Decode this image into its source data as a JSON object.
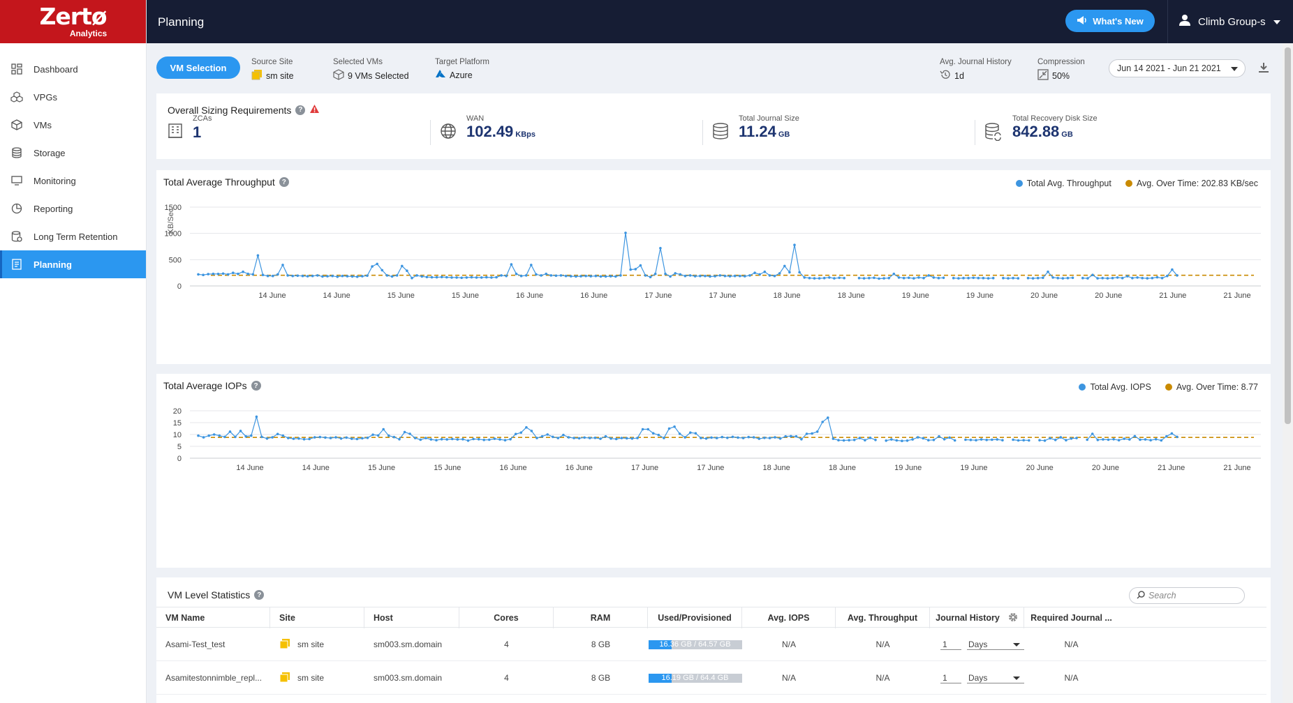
{
  "brand": {
    "name": "Zertø",
    "sub": "Analytics"
  },
  "sidebar": {
    "items": [
      {
        "label": "Dashboard",
        "icon": "dashboard-icon"
      },
      {
        "label": "VPGs",
        "icon": "vpgs-icon"
      },
      {
        "label": "VMs",
        "icon": "vms-icon"
      },
      {
        "label": "Storage",
        "icon": "storage-icon"
      },
      {
        "label": "Monitoring",
        "icon": "monitor-icon"
      },
      {
        "label": "Reporting",
        "icon": "pie-chart-icon"
      },
      {
        "label": "Long Term Retention",
        "icon": "ltr-icon"
      },
      {
        "label": "Planning",
        "icon": "planning-icon",
        "active": true
      }
    ]
  },
  "header": {
    "title": "Planning",
    "whats_new": "What's New",
    "user": "Climb Group-s"
  },
  "toolbar": {
    "vm_selection": "VM Selection",
    "source_site_label": "Source Site",
    "source_site_value": "sm site",
    "selected_vms_label": "Selected VMs",
    "selected_vms_value": "9 VMs Selected",
    "target_platform_label": "Target Platform",
    "target_platform_value": "Azure",
    "journal_history_label": "Avg. Journal History",
    "journal_history_value": "1d",
    "compression_label": "Compression",
    "compression_value": "50%",
    "date_range": "Jun 14 2021 - Jun 21 2021"
  },
  "sizing": {
    "title": "Overall Sizing Requirements",
    "zcas_label": "ZCAs",
    "zcas_value": "1",
    "wan_label": "WAN",
    "wan_value": "102.49",
    "wan_unit": "KBps",
    "journal_label": "Total Journal Size",
    "journal_value": "11.24",
    "journal_unit": "GB",
    "recovery_label": "Total Recovery Disk Size",
    "recovery_value": "842.88",
    "recovery_unit": "GB"
  },
  "colors": {
    "accent": "#2b97f0",
    "series": "#3d95e0",
    "average": "#c98a00",
    "header": "#161d34",
    "brand": "#c4161c"
  },
  "chart_data": [
    {
      "type": "line",
      "title": "Total Average Throughput",
      "ylabel": "KB/Sec",
      "ylim": [
        0,
        1500
      ],
      "yticks": [
        0,
        500,
        1000,
        1500
      ],
      "xticks": [
        "14 June",
        "14 June",
        "15 June",
        "15 June",
        "16 June",
        "16 June",
        "17 June",
        "17 June",
        "18 June",
        "18 June",
        "19 June",
        "19 June",
        "20 June",
        "20 June",
        "21 June",
        "21 June"
      ],
      "legend": [
        "Total Avg. Throughput",
        "Avg. Over Time: 202.83 KB/sec"
      ],
      "average": 202.83,
      "series": [
        {
          "name": "Total Avg. Throughput",
          "values": [
            220,
            210,
            225,
            230,
            228,
            235,
            220,
            250,
            230,
            270,
            230,
            220,
            580,
            210,
            190,
            190,
            220,
            400,
            200,
            190,
            195,
            190,
            185,
            190,
            200,
            180,
            185,
            190,
            175,
            190,
            185,
            180,
            175,
            185,
            195,
            370,
            420,
            300,
            200,
            180,
            200,
            380,
            290,
            150,
            200,
            180,
            170,
            165,
            165,
            170,
            165,
            160,
            160,
            155,
            160,
            165,
            160,
            160,
            165,
            160,
            165,
            200,
            190,
            410,
            230,
            190,
            200,
            400,
            220,
            200,
            230,
            200,
            195,
            200,
            190,
            185,
            180,
            185,
            190,
            185,
            190,
            180,
            180,
            185,
            180,
            200,
            1010,
            310,
            320,
            390,
            200,
            170,
            230,
            720,
            230,
            180,
            240,
            220,
            190,
            200,
            185,
            190,
            190,
            180,
            185,
            200,
            190,
            185,
            190,
            190,
            185,
            200,
            250,
            220,
            270,
            200,
            190,
            240,
            380,
            260,
            780,
            260,
            160,
            150,
            145,
            145,
            150,
            160,
            145,
            155,
            150,
            null,
            null,
            150,
            145,
            150,
            155,
            140,
            145,
            150,
            230,
            160,
            150,
            155,
            145,
            160,
            150,
            200,
            160,
            150,
            155,
            null,
            150,
            145,
            150,
            150,
            155,
            150,
            150,
            145,
            150,
            null,
            150,
            145,
            150,
            145,
            null,
            150,
            145,
            150,
            155,
            270,
            160,
            150,
            145,
            150,
            155,
            null,
            150,
            145,
            210,
            145,
            150,
            145,
            150,
            160,
            150,
            185,
            150,
            160,
            150,
            145,
            150,
            165,
            150,
            190,
            310,
            200
          ]
        },
        {
          "name": "Avg. Over Time: 202.83 KB/sec",
          "values": [
            202.83
          ]
        }
      ]
    },
    {
      "type": "line",
      "title": "Total Average IOPs",
      "ylim": [
        0,
        20
      ],
      "yticks": [
        0,
        5,
        10,
        15,
        20
      ],
      "xticks": [
        "14 June",
        "14 June",
        "15 June",
        "15 June",
        "16 June",
        "16 June",
        "17 June",
        "17 June",
        "18 June",
        "18 June",
        "19 June",
        "19 June",
        "20 June",
        "20 June",
        "21 June",
        "21 June"
      ],
      "legend": [
        "Total Avg. IOPS",
        "Avg. Over Time: 8.77"
      ],
      "average": 8.77,
      "series": [
        {
          "name": "Total Avg. IOPS",
          "values": [
            9.5,
            8.8,
            9.5,
            10.0,
            9.5,
            9.0,
            11.2,
            9.0,
            11.5,
            9.2,
            9.5,
            17.5,
            9.0,
            8.3,
            8.8,
            10.2,
            9.5,
            8.5,
            8.2,
            8.3,
            8.0,
            8.1,
            8.8,
            8.9,
            8.7,
            8.5,
            8.8,
            8.3,
            8.7,
            8.2,
            8.1,
            8.4,
            8.6,
            9.9,
            9.6,
            12.2,
            9.5,
            8.9,
            8.0,
            11.0,
            10.3,
            8.5,
            7.8,
            8.5,
            7.9,
            7.6,
            8.0,
            7.9,
            8.1,
            7.9,
            8.0,
            7.4,
            8.1,
            8.0,
            7.7,
            7.8,
            8.2,
            7.9,
            7.6,
            8.0,
            10.2,
            10.8,
            13.0,
            11.5,
            8.5,
            9.2,
            10.0,
            9.0,
            8.5,
            9.8,
            8.8,
            8.5,
            8.4,
            8.7,
            8.5,
            8.6,
            8.2,
            9.2,
            8.3,
            8.1,
            8.5,
            8.4,
            8.3,
            8.5,
            12.2,
            12.2,
            10.5,
            9.8,
            8.5,
            12.5,
            13.3,
            10.3,
            8.8,
            10.8,
            10.5,
            8.5,
            8.3,
            8.7,
            8.5,
            8.9,
            8.6,
            9.0,
            8.7,
            8.5,
            8.9,
            8.8,
            8.2,
            8.6,
            8.5,
            8.8,
            8.3,
            9.2,
            9.3,
            9.2,
            8.0,
            10.3,
            10.4,
            11.2,
            15.3,
            17.1,
            8.2,
            7.6,
            7.5,
            7.6,
            7.7,
            8.5,
            7.6,
            8.6,
            7.7,
            null,
            7.4,
            7.9,
            7.5,
            7.3,
            7.4,
            7.9,
            8.8,
            8.4,
            7.6,
            7.7,
            9.2,
            8.0,
            8.7,
            7.5,
            null,
            7.8,
            7.7,
            7.6,
            7.9,
            7.7,
            7.8,
            7.9,
            7.6,
            null,
            7.8,
            7.5,
            7.6,
            7.5,
            null,
            7.6,
            7.4,
            8.4,
            7.7,
            8.8,
            7.6,
            8.3,
            8.5,
            null,
            7.8,
            10.3,
            7.7,
            7.9,
            7.8,
            8.0,
            7.6,
            8.2,
            7.9,
            9.3,
            7.8,
            7.9,
            7.6,
            8.0,
            7.5,
            9.2,
            10.4,
            9.0
          ]
        },
        {
          "name": "Avg. Over Time: 8.77",
          "values": [
            8.77
          ]
        }
      ]
    }
  ],
  "table": {
    "title": "VM Level Statistics",
    "search_placeholder": "Search",
    "columns": [
      "VM Name",
      "Site",
      "Host",
      "Cores",
      "RAM",
      "Used/Provisioned",
      "Avg. IOPS",
      "Avg. Throughput",
      "Journal History",
      "Required Journal ..."
    ],
    "rows": [
      {
        "vm": "Asami-Test_test",
        "site": "sm site",
        "host": "sm003.sm.domain",
        "cores": "4",
        "ram": "8 GB",
        "used": "16.36 GB / 64.57 GB",
        "used_fraction": 0.253,
        "iops": "N/A",
        "throughput": "N/A",
        "jh_num": "1",
        "jh_unit": "Days",
        "req_journal": "N/A"
      },
      {
        "vm": "Asamitestonnimble_repl...",
        "site": "sm site",
        "host": "sm003.sm.domain",
        "cores": "4",
        "ram": "8 GB",
        "used": "16.19 GB / 64.4 GB",
        "used_fraction": 0.251,
        "iops": "N/A",
        "throughput": "N/A",
        "jh_num": "1",
        "jh_unit": "Days",
        "req_journal": "N/A"
      }
    ]
  }
}
